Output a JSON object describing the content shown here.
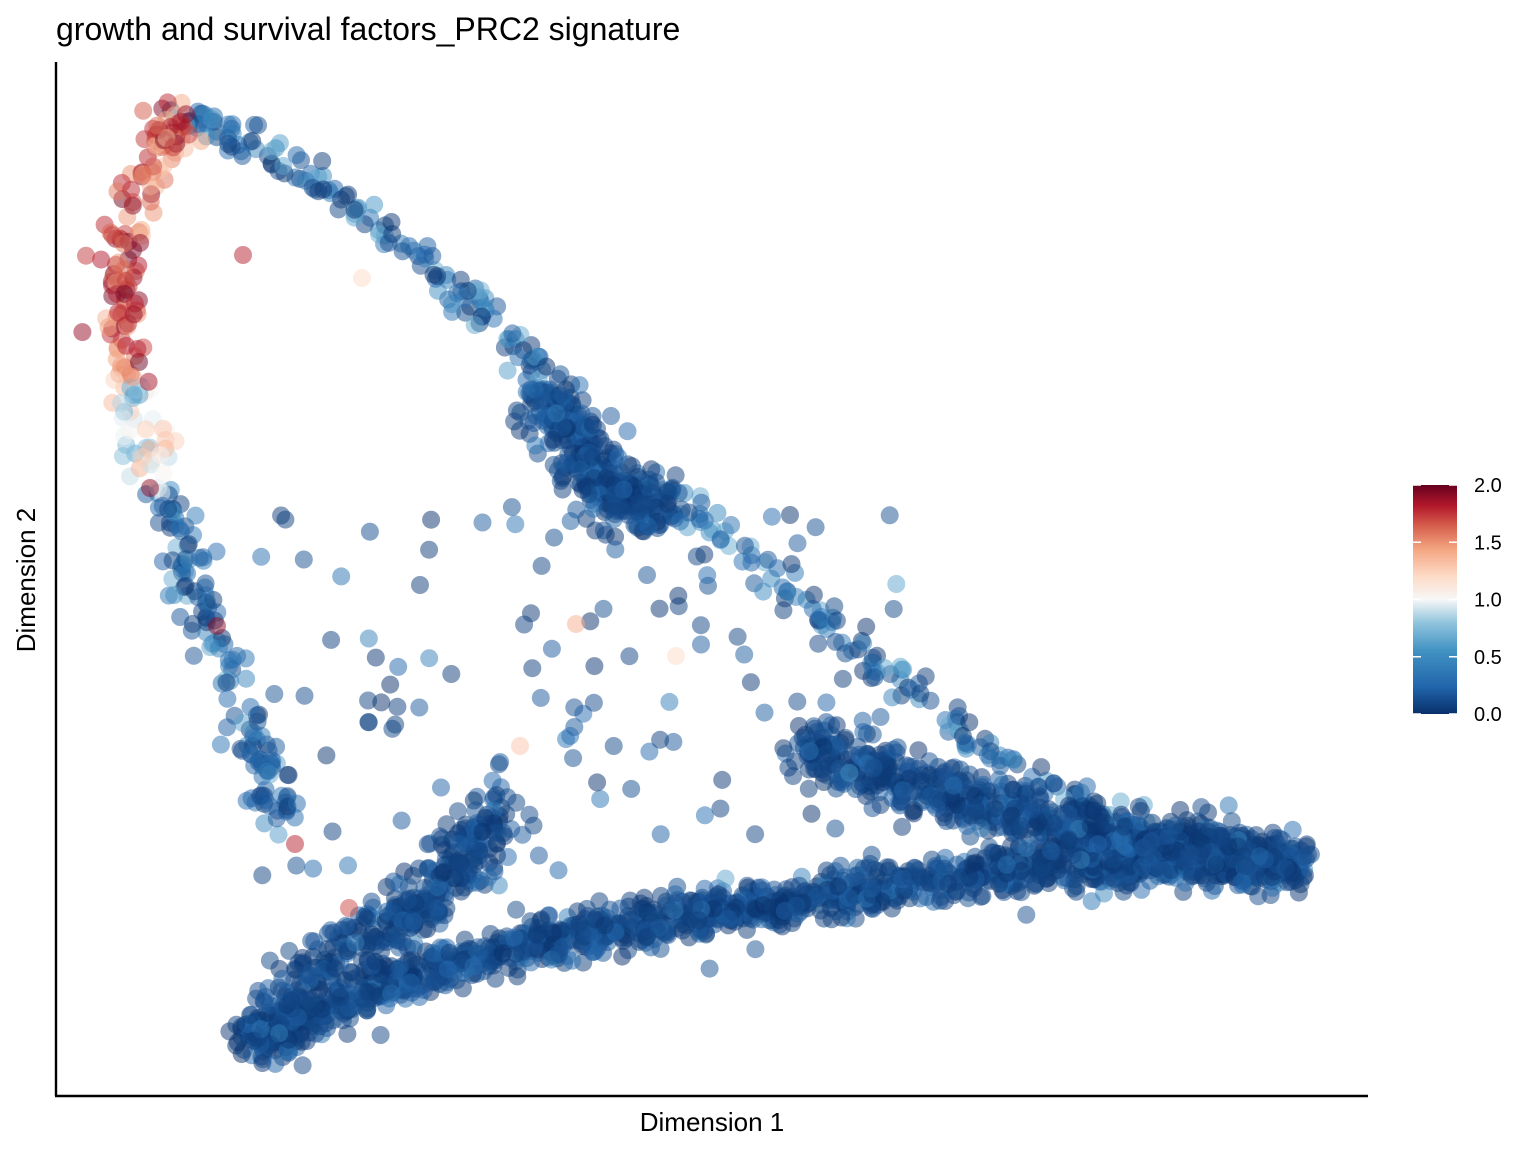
{
  "chart_data": {
    "type": "scatter",
    "title": "growth and survival factors_PRC2 signature",
    "xlabel": "Dimension 1",
    "ylabel": "Dimension 2",
    "x_ticks_shown": false,
    "y_ticks_shown": false,
    "grid": false,
    "legend": {
      "type": "colorbar",
      "placement": "right",
      "ticks": [
        "2.0",
        "1.5",
        "1.0",
        "0.5",
        "0.0"
      ],
      "range": [
        0,
        2
      ],
      "colormap": "RdBu (reversed)",
      "colors": [
        "#08306b",
        "#2166ac",
        "#4393c3",
        "#92c5de",
        "#f7f7f7",
        "#fddbc7",
        "#f4a582",
        "#d6604d",
        "#b2182b",
        "#67001f"
      ]
    },
    "notes": "Several thousand cells forming a triangular trajectory; high scores (red) cluster at the upper-left tip, the rest of the trajectory is mostly near 0 (dark blue)."
  }
}
